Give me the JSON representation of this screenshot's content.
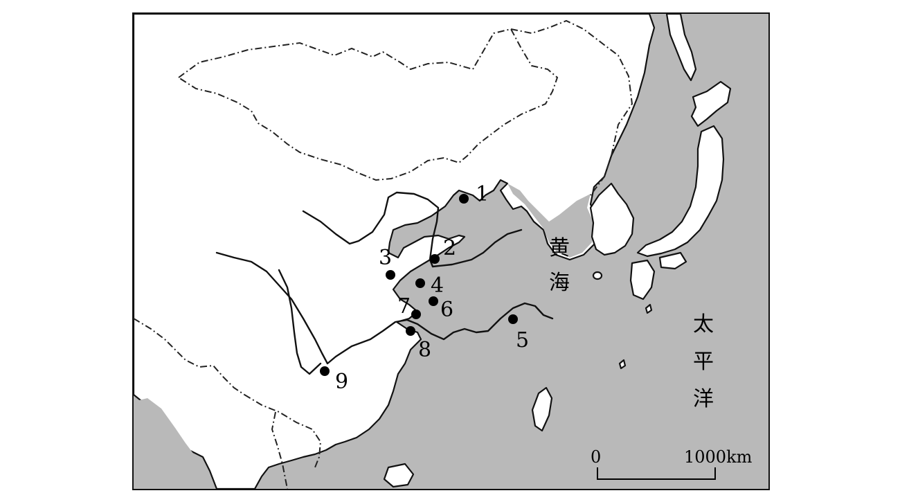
{
  "sea_labels": {
    "yellow_sea": [
      "黄",
      "海"
    ],
    "pacific_ocean": [
      "太",
      "平",
      "洋"
    ]
  },
  "sites": [
    {
      "id": "1",
      "label": "1"
    },
    {
      "id": "2",
      "label": "2"
    },
    {
      "id": "3",
      "label": "3"
    },
    {
      "id": "4",
      "label": "4"
    },
    {
      "id": "5",
      "label": "5"
    },
    {
      "id": "6",
      "label": "6"
    },
    {
      "id": "7",
      "label": "7"
    },
    {
      "id": "8",
      "label": "8"
    },
    {
      "id": "9",
      "label": "9"
    }
  ],
  "scale_bar": {
    "start_label": "0",
    "end_label": "1000km"
  },
  "colors": {
    "sea": "#b9b9b9",
    "land": "#ffffff",
    "ink": "#111111"
  }
}
